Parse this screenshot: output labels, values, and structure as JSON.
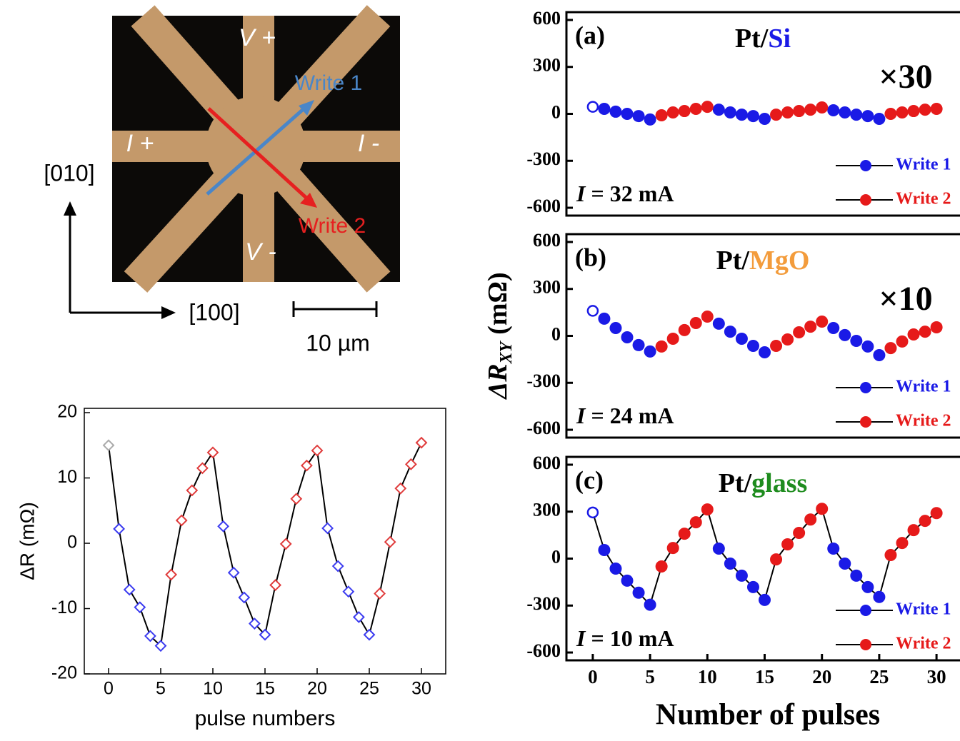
{
  "micrograph": {
    "v_plus": "V +",
    "v_minus": "V -",
    "i_plus": "I +",
    "i_minus": "I -",
    "write1": "Write 1",
    "write2": "Write 2",
    "axis_y": "[010]",
    "axis_x": "[100]",
    "scale": "10 µm"
  },
  "chart_data": [
    {
      "type": "line",
      "xlabel": "pulse numbers",
      "ylabel": "ΔR (mΩ)",
      "x": [
        0,
        1,
        2,
        3,
        4,
        5,
        6,
        7,
        8,
        9,
        10,
        11,
        12,
        13,
        14,
        15,
        16,
        17,
        18,
        19,
        20,
        21,
        22,
        23,
        24,
        25,
        26,
        27,
        28,
        29,
        30
      ],
      "series": [
        {
          "color": "#000000",
          "values": [
            15,
            2.2,
            -7.1,
            -9.8,
            -14.2,
            -15.7,
            -4.8,
            3.5,
            8.1,
            11.5,
            13.9,
            2.6,
            -4.5,
            -8.3,
            -12.3,
            -14,
            -6.4,
            -0.1,
            6.8,
            11.9,
            14.2,
            2.3,
            -3.5,
            -7.4,
            -11.3,
            -14,
            -7.7,
            0.2,
            8.4,
            12.1,
            15.4
          ],
          "marker_colors": [
            "#aaaaaa",
            "#3c3cf0",
            "#3c3cf0",
            "#3c3cf0",
            "#3c3cf0",
            "#3c3cf0",
            "#e03c3c",
            "#e03c3c",
            "#e03c3c",
            "#e03c3c",
            "#e03c3c",
            "#3c3cf0",
            "#3c3cf0",
            "#3c3cf0",
            "#3c3cf0",
            "#3c3cf0",
            "#e03c3c",
            "#e03c3c",
            "#e03c3c",
            "#e03c3c",
            "#e03c3c",
            "#3c3cf0",
            "#3c3cf0",
            "#3c3cf0",
            "#3c3cf0",
            "#3c3cf0",
            "#e03c3c",
            "#e03c3c",
            "#e03c3c",
            "#e03c3c",
            "#e03c3c"
          ]
        }
      ],
      "xlim": [
        -2.33,
        32.33
      ],
      "ylim": [
        -20,
        20.66
      ],
      "xticks": [
        0,
        5,
        10,
        15,
        20,
        25,
        30
      ],
      "yticks": [
        -20,
        -10,
        0,
        10,
        20
      ]
    },
    {
      "type": "scatter",
      "panel_label": "(a)",
      "title_parts": [
        {
          "text": "Pt/",
          "color": "#000000"
        },
        {
          "text": "Si",
          "color": "#1a1ae6"
        }
      ],
      "scale_factor": "×30",
      "current_symbol": "I",
      "current": "= 32 mA",
      "x": [
        0,
        1,
        2,
        3,
        4,
        5,
        6,
        7,
        8,
        9,
        10,
        11,
        12,
        13,
        14,
        15,
        16,
        17,
        18,
        19,
        20,
        21,
        22,
        23,
        24,
        25,
        26,
        27,
        28,
        29,
        30
      ],
      "series": [
        {
          "name": "Write 1",
          "color": "#1a1ae6",
          "values": [
            45,
            32,
            14,
            0,
            -14,
            -36,
            null,
            null,
            null,
            null,
            null,
            27,
            9,
            -5,
            -14,
            -32,
            null,
            null,
            null,
            null,
            null,
            23,
            9,
            -5,
            -14,
            -32,
            null,
            null,
            null,
            null,
            null
          ]
        },
        {
          "name": "Write 2",
          "color": "#e61a1a",
          "values": [
            null,
            null,
            null,
            null,
            null,
            null,
            -9,
            9,
            18,
            32,
            45,
            null,
            null,
            null,
            null,
            null,
            -5,
            9,
            18,
            27,
            41,
            null,
            null,
            null,
            null,
            null,
            0,
            9,
            18,
            27,
            32
          ]
        }
      ],
      "line": false,
      "xlim": [
        -2.3,
        32.05
      ],
      "ylim": [
        -650,
        650
      ],
      "yticks": [
        -600,
        -300,
        0,
        300,
        600
      ]
    },
    {
      "type": "scatter",
      "panel_label": "(b)",
      "title_parts": [
        {
          "text": "Pt/",
          "color": "#000000"
        },
        {
          "text": "MgO",
          "color": "#f39c3c"
        }
      ],
      "scale_factor": "×10",
      "current_symbol": "I",
      "current": "= 24 mA",
      "ylabel_parts": [
        "ΔR",
        "XY",
        "(mΩ)"
      ],
      "x": [
        0,
        1,
        2,
        3,
        4,
        5,
        6,
        7,
        8,
        9,
        10,
        11,
        12,
        13,
        14,
        15,
        16,
        17,
        18,
        19,
        20,
        21,
        22,
        23,
        24,
        25,
        26,
        27,
        28,
        29,
        30
      ],
      "series": [
        {
          "name": "Write 1",
          "color": "#1a1ae6",
          "values": [
            160,
            110,
            50,
            -9,
            -59,
            -100,
            null,
            null,
            null,
            null,
            null,
            78,
            27,
            -18,
            -64,
            -105,
            null,
            null,
            null,
            null,
            null,
            50,
            5,
            -32,
            -68,
            -123,
            null,
            null,
            null,
            null,
            null
          ]
        },
        {
          "name": "Write 2",
          "color": "#e61a1a",
          "values": [
            null,
            null,
            null,
            null,
            null,
            null,
            -68,
            -18,
            37,
            82,
            123,
            null,
            null,
            null,
            null,
            null,
            -64,
            -23,
            23,
            59,
            91,
            null,
            null,
            null,
            null,
            null,
            -78,
            -36,
            9,
            27,
            55
          ]
        }
      ],
      "line": false,
      "xlim": [
        -2.3,
        32.05
      ],
      "ylim": [
        -650,
        650
      ],
      "yticks": [
        -600,
        -300,
        0,
        300,
        600
      ]
    },
    {
      "type": "scatter",
      "panel_label": "(c)",
      "title_parts": [
        {
          "text": "Pt/",
          "color": "#000000"
        },
        {
          "text": "glass",
          "color": "#1e8c1e"
        }
      ],
      "current_symbol": "I",
      "current": "= 10 mA",
      "xlabel": "Number of pulses",
      "x": [
        0,
        1,
        2,
        3,
        4,
        5,
        6,
        7,
        8,
        9,
        10,
        11,
        12,
        13,
        14,
        15,
        16,
        17,
        18,
        19,
        20,
        21,
        22,
        23,
        24,
        25,
        26,
        27,
        28,
        29,
        30
      ],
      "series": [
        {
          "name": "Write 1",
          "color": "#1a1ae6",
          "values": [
            295,
            55,
            -64,
            -141,
            -218,
            -295,
            null,
            null,
            null,
            null,
            null,
            64,
            -32,
            -109,
            -182,
            -264,
            null,
            null,
            null,
            null,
            null,
            64,
            -32,
            -109,
            -182,
            -245,
            null,
            null,
            null,
            null,
            null
          ]
        },
        {
          "name": "Write 2",
          "color": "#e61a1a",
          "values": [
            null,
            null,
            null,
            null,
            null,
            null,
            -50,
            68,
            159,
            232,
            314,
            null,
            null,
            null,
            null,
            null,
            -5,
            91,
            164,
            250,
            318,
            null,
            null,
            null,
            null,
            null,
            23,
            100,
            182,
            241,
            291
          ]
        }
      ],
      "line": true,
      "xlim": [
        -2.3,
        32.05
      ],
      "ylim": [
        -650,
        650
      ],
      "xticks": [
        0,
        5,
        10,
        15,
        20,
        25,
        30
      ],
      "yticks": [
        -600,
        -300,
        0,
        300,
        600
      ]
    }
  ]
}
